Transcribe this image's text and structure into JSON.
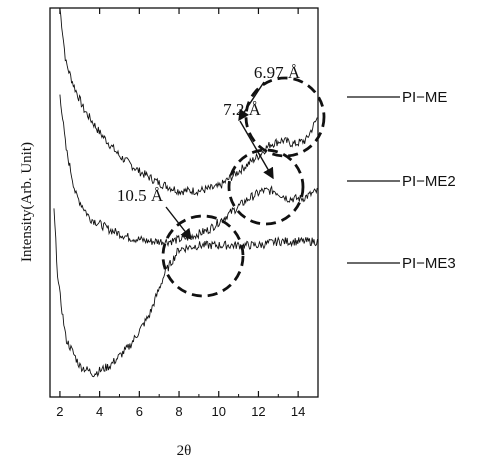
{
  "chart_data": {
    "type": "line",
    "xlabel": "2θ",
    "ylabel": "Intensity(Arb. Unit)",
    "xlim": [
      1.5,
      15
    ],
    "x_ticks": [
      "2",
      "4",
      "6",
      "8",
      "10",
      "12",
      "14"
    ],
    "y_ticks_shown": false,
    "grid": false,
    "series": [
      {
        "name": "PI−ME",
        "points": [
          [
            2.0,
            1.0
          ],
          [
            2.3,
            0.86
          ],
          [
            2.7,
            0.8
          ],
          [
            3.2,
            0.74
          ],
          [
            4.0,
            0.68
          ],
          [
            5.0,
            0.62
          ],
          [
            6.0,
            0.58
          ],
          [
            7.0,
            0.55
          ],
          [
            8.0,
            0.53
          ],
          [
            9.0,
            0.53
          ],
          [
            10.0,
            0.54
          ],
          [
            11.0,
            0.58
          ],
          [
            12.0,
            0.62
          ],
          [
            12.6,
            0.65
          ],
          [
            13.2,
            0.66
          ],
          [
            13.8,
            0.65
          ],
          [
            14.4,
            0.66
          ],
          [
            15.0,
            0.72
          ]
        ]
      },
      {
        "name": "PI−ME2",
        "points": [
          [
            2.0,
            0.78
          ],
          [
            2.3,
            0.64
          ],
          [
            2.8,
            0.52
          ],
          [
            3.5,
            0.46
          ],
          [
            4.5,
            0.43
          ],
          [
            5.5,
            0.41
          ],
          [
            6.5,
            0.4
          ],
          [
            7.5,
            0.4
          ],
          [
            8.5,
            0.41
          ],
          [
            9.5,
            0.43
          ],
          [
            10.5,
            0.47
          ],
          [
            11.5,
            0.51
          ],
          [
            12.2,
            0.53
          ],
          [
            12.8,
            0.53
          ],
          [
            13.5,
            0.51
          ],
          [
            14.2,
            0.51
          ],
          [
            15.0,
            0.53
          ]
        ]
      },
      {
        "name": "PI−ME3",
        "points": [
          [
            1.7,
            0.48
          ],
          [
            1.9,
            0.3
          ],
          [
            2.3,
            0.15
          ],
          [
            3.0,
            0.08
          ],
          [
            3.7,
            0.06
          ],
          [
            4.5,
            0.08
          ],
          [
            5.5,
            0.13
          ],
          [
            6.5,
            0.21
          ],
          [
            7.3,
            0.32
          ],
          [
            8.0,
            0.38
          ],
          [
            9.0,
            0.39
          ],
          [
            10.0,
            0.39
          ],
          [
            11.0,
            0.39
          ],
          [
            12.0,
            0.39
          ],
          [
            13.0,
            0.4
          ],
          [
            14.0,
            0.4
          ],
          [
            15.0,
            0.4
          ]
        ]
      }
    ],
    "annotations": [
      {
        "text": "6.97 Å",
        "x": 13.3,
        "y": 0.66
      },
      {
        "text": "7.2 Å",
        "x": 12.4,
        "y": 0.52
      },
      {
        "text": "10.5 Å",
        "x": 8.8,
        "y": 0.4
      }
    ]
  }
}
